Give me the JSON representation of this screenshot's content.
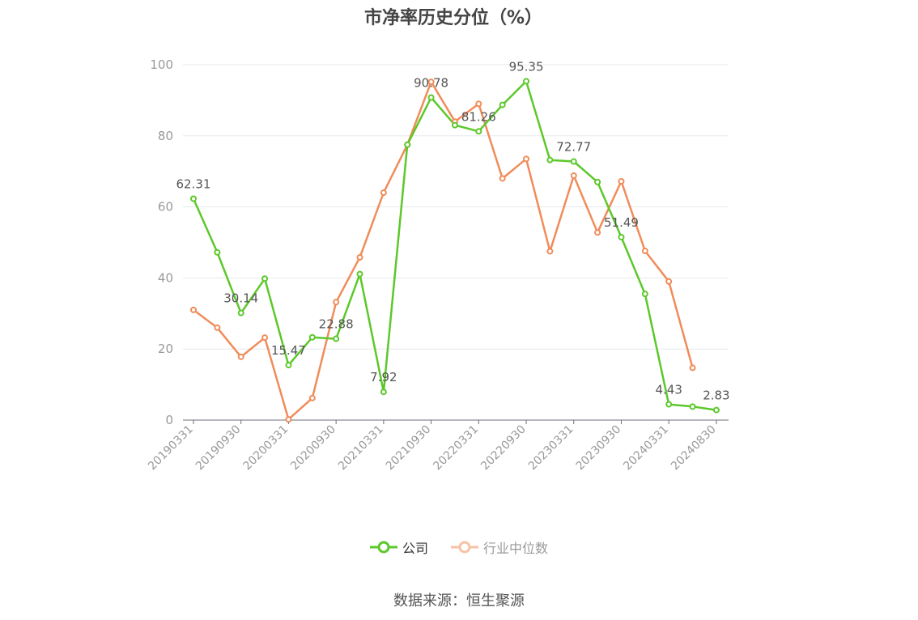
{
  "chart_data": {
    "type": "line",
    "title": "市净率历史分位（%）",
    "ylim": [
      0,
      100
    ],
    "yticks": [
      0,
      20,
      40,
      60,
      80,
      100
    ],
    "x_tick_labels": [
      "20190331",
      "20190930",
      "20200331",
      "20200930",
      "20210331",
      "20210930",
      "20220331",
      "20220930",
      "20230331",
      "20230930",
      "20240331",
      "20240830"
    ],
    "series": [
      {
        "name": "公司",
        "color": "#5cc82a",
        "values": [
          62.31,
          47.2,
          30.14,
          39.8,
          15.47,
          23.3,
          22.88,
          41.1,
          7.92,
          77.5,
          90.78,
          83.0,
          81.26,
          88.7,
          95.35,
          73.2,
          72.77,
          67.0,
          51.49,
          35.5,
          4.43,
          3.8,
          2.83
        ],
        "labels": {
          "0": "62.31",
          "2": "30.14",
          "4": "15.47",
          "6": "22.88",
          "8": "7.92",
          "10": "90.78",
          "12": "81.26",
          "14": "95.35",
          "16": "72.77",
          "18": "51.49",
          "20": "4.43",
          "22": "2.83"
        }
      },
      {
        "name": "行业中位数",
        "color": "#f08c5a",
        "values": [
          31.0,
          26.0,
          17.8,
          23.2,
          0.2,
          6.2,
          33.2,
          45.8,
          64.0,
          77.5,
          95.2,
          84.0,
          89.0,
          68.0,
          73.5,
          47.5,
          68.8,
          52.8,
          67.2,
          47.6,
          39.0,
          14.7
        ]
      }
    ],
    "legend_position": "bottom-center"
  },
  "legend": {
    "company_label": "公司",
    "industry_label": "行业中位数"
  },
  "source_text": "数据来源：恒生聚源"
}
